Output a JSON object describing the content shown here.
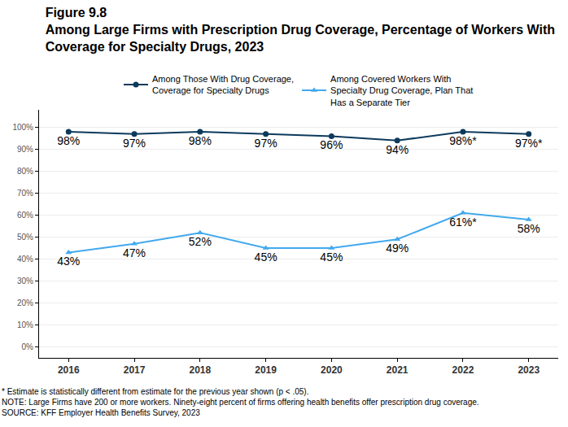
{
  "chart_data": {
    "type": "line",
    "title": "Figure 9.8",
    "subtitle": "Among Large Firms with Prescription Drug Coverage, Percentage of Workers With Coverage for Specialty Drugs, 2023",
    "categories": [
      "2016",
      "2017",
      "2018",
      "2019",
      "2020",
      "2021",
      "2022",
      "2023"
    ],
    "series": [
      {
        "name": "Among Those With Drug Coverage, Coverage for Specialty Drugs",
        "color": "#0d3a5c",
        "marker": "circle",
        "line_style": "solid",
        "values": [
          98,
          97,
          98,
          97,
          96,
          94,
          98,
          97
        ],
        "value_labels": [
          "98%",
          "97%",
          "98%",
          "97%",
          "96%",
          "94%",
          "98%*",
          "97%*"
        ]
      },
      {
        "name": "Among Covered Workers With Specialty Drug Coverage, Plan That Has a Separate Tier",
        "color": "#42a9ee",
        "marker": "triangle-up",
        "line_style": "solid",
        "values": [
          43,
          47,
          52,
          45,
          45,
          49,
          61,
          58
        ],
        "value_labels": [
          "43%",
          "47%",
          "52%",
          "45%",
          "45%",
          "49%",
          "61%*",
          "58%"
        ]
      }
    ],
    "ylim": [
      -5,
      108
    ],
    "yticks": [
      {
        "value": 0,
        "label": "0%"
      },
      {
        "value": 10,
        "label": "10%"
      },
      {
        "value": 20,
        "label": "20%"
      },
      {
        "value": 30,
        "label": "30%"
      },
      {
        "value": 40,
        "label": "40%"
      },
      {
        "value": 50,
        "label": "50%"
      },
      {
        "value": 60,
        "label": "60%"
      },
      {
        "value": 70,
        "label": "70%"
      },
      {
        "value": 80,
        "label": "80%"
      },
      {
        "value": 90,
        "label": "90%"
      },
      {
        "value": 100,
        "label": "100%"
      }
    ],
    "grid": true,
    "legend": "top",
    "data_labels": true,
    "notes": [
      "* Estimate is statistically different from estimate for the previous year shown (p < .05).",
      "NOTE: Large Firms have 200 or more workers. Ninety-eight percent of firms offering health benefits offer prescription drug coverage.",
      "SOURCE: KFF Employer Health Benefits Survey, 2023"
    ]
  }
}
